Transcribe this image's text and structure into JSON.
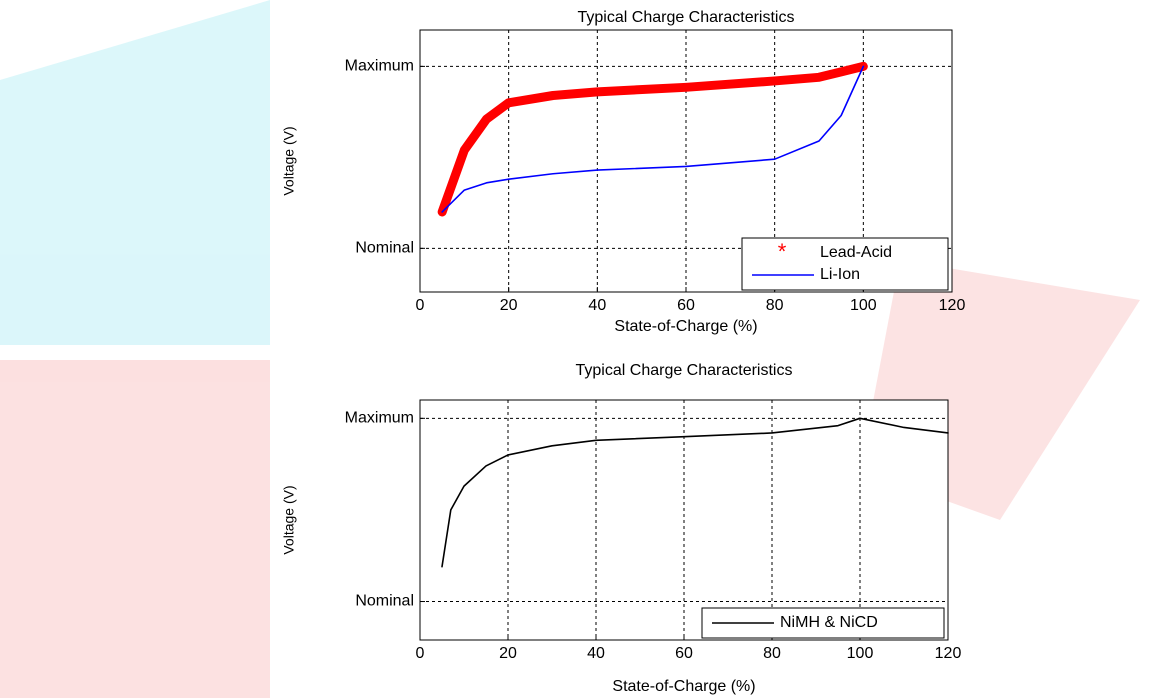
{
  "chart_data": [
    {
      "type": "line",
      "title": "Typical Charge Characteristics",
      "x_label": "State-of-Charge (%)",
      "y_label": "Voltage (V)",
      "x": [
        5,
        10,
        15,
        20,
        30,
        40,
        60,
        80,
        90,
        95,
        100
      ],
      "series": [
        {
          "name": "Lead-Acid",
          "color": "#ff0000",
          "marker": "*",
          "values": [
            0.2,
            0.54,
            0.71,
            0.8,
            0.84,
            0.86,
            0.885,
            0.92,
            0.94,
            0.97,
            1.0
          ]
        },
        {
          "name": "Li-Ion",
          "color": "#0000ff",
          "values": [
            0.2,
            0.32,
            0.36,
            0.38,
            0.41,
            0.43,
            0.45,
            0.49,
            0.59,
            0.73,
            1.0
          ]
        }
      ],
      "xlim": [
        0,
        120
      ],
      "xticks": [
        0,
        20,
        40,
        60,
        80,
        100,
        120
      ],
      "ylim": [
        -0.24,
        1.2
      ],
      "yticks": [
        {
          "value": 0,
          "label": "Nominal"
        },
        {
          "value": 1,
          "label": "Maximum"
        }
      ],
      "grid": true,
      "legend": "lower right"
    },
    {
      "type": "line",
      "title": "Typical Charge Characteristics",
      "x_label": "State-of-Charge (%)",
      "y_label": "Voltage (V)",
      "x": [
        5,
        7,
        10,
        15,
        20,
        30,
        40,
        60,
        80,
        95,
        100,
        110,
        120
      ],
      "series": [
        {
          "name": "NiMH & NiCD",
          "color": "#000000",
          "values": [
            0.19,
            0.5,
            0.63,
            0.74,
            0.8,
            0.85,
            0.88,
            0.9,
            0.92,
            0.96,
            1.0,
            0.95,
            0.92
          ]
        }
      ],
      "xlim": [
        0,
        120
      ],
      "xticks": [
        0,
        20,
        40,
        60,
        80,
        100,
        120
      ],
      "ylim": [
        -0.21,
        1.1
      ],
      "yticks": [
        {
          "value": 0,
          "label": "Nominal"
        },
        {
          "value": 1,
          "label": "Maximum"
        }
      ],
      "grid": true,
      "legend": "lower right"
    }
  ]
}
